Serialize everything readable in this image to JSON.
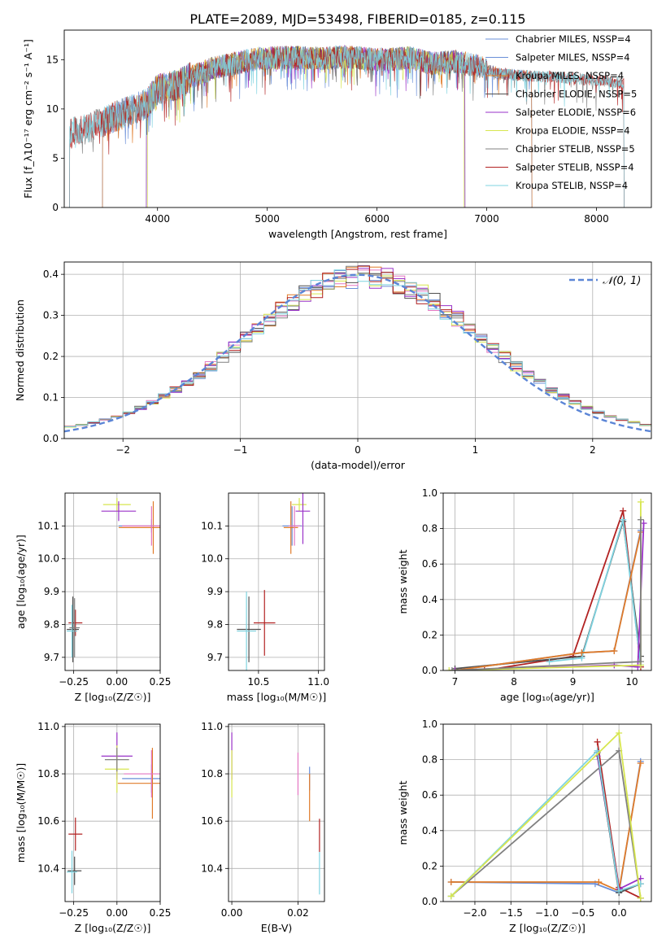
{
  "figure": {
    "title": "PLATE=2089, MJD=53498, FIBERID=0185, z=0.115"
  },
  "chart_data": [
    {
      "id": "spectrum",
      "type": "line",
      "xlabel": "wavelength [Angstrom, rest frame]",
      "ylabel": "Flux [f_λ10⁻¹⁷ erg cm⁻² s⁻¹ A⁻¹]",
      "xlim": [
        3150,
        8500
      ],
      "ylim": [
        0,
        18
      ],
      "xticks": [
        4000,
        5000,
        6000,
        7000,
        8000
      ],
      "yticks": [
        0,
        5,
        10,
        15
      ],
      "grid": false,
      "legend": "top-right",
      "series": [
        {
          "name": "Chabrier MILES, N_SSP=4",
          "color": "#6a8fd8",
          "range": [
            3500,
            7410
          ]
        },
        {
          "name": "Salpeter MILES, N_SSP=4",
          "color": "#6a8fd8",
          "range": [
            3500,
            7410
          ]
        },
        {
          "name": "Kroupa MILES, N_SSP=4",
          "color": "#e07b29",
          "range": [
            3500,
            7410
          ]
        },
        {
          "name": "Chabrier ELODIE, N_SSP=5",
          "color": "#4f4f4f",
          "range": [
            3900,
            6800
          ]
        },
        {
          "name": "Salpeter ELODIE, N_SSP=6",
          "color": "#9a32c8",
          "range": [
            3900,
            6800
          ]
        },
        {
          "name": "Kroupa ELODIE, N_SSP=4",
          "color": "#d7e64f",
          "range": [
            3910,
            6790
          ]
        },
        {
          "name": "Chabrier STELIB, N_SSP=5",
          "color": "#808080",
          "range": [
            3200,
            8250
          ]
        },
        {
          "name": "Salpeter STELIB, N_SSP=4",
          "color": "#b22222",
          "range": [
            3200,
            8250
          ]
        },
        {
          "name": "Kroupa STELIB, N_SSP=4",
          "color": "#7fd3e0",
          "range": [
            3200,
            8250
          ]
        }
      ],
      "continuum": {
        "x": [
          3200,
          3400,
          3700,
          3900,
          4000,
          4200,
          4300,
          4500,
          4700,
          4900,
          5100,
          5300,
          5500,
          5700,
          5900,
          6100,
          6300,
          6500,
          6700,
          6900,
          7100,
          7300,
          7500,
          7700,
          7900,
          8100,
          8250
        ],
        "y": [
          7.5,
          8.2,
          9.6,
          10.5,
          12.0,
          12.5,
          13.2,
          14.1,
          14.6,
          15.1,
          15.2,
          15.2,
          15.1,
          15.3,
          15.1,
          15.0,
          15.2,
          14.6,
          14.8,
          14.4,
          13.6,
          13.4,
          13.3,
          13.2,
          13.0,
          12.8,
          12.6
        ]
      }
    },
    {
      "id": "residuals",
      "type": "histogram",
      "xlabel": "(data-model)/error",
      "ylabel": "Normed distribution",
      "xlim": [
        -2.5,
        2.5
      ],
      "ylim": [
        0,
        0.43
      ],
      "xticks": [
        -2,
        -1,
        0,
        1,
        2
      ],
      "xtick_labels": [
        "−2",
        "−1",
        "0",
        "1",
        "2"
      ],
      "yticks": [
        0.0,
        0.1,
        0.2,
        0.3,
        0.4
      ],
      "ytick_labels": [
        "0.0",
        "0.1",
        "0.2",
        "0.3",
        "0.4"
      ],
      "grid": true,
      "legend": "top-right",
      "reference_curve": {
        "name": "𝒩(0, 1)",
        "color": "#5b85d6",
        "style": "dashed"
      },
      "bin_width": 0.1,
      "series_colors": [
        "#6a8fd8",
        "#e377c2",
        "#e07b29",
        "#4f4f4f",
        "#9a32c8",
        "#d7e64f",
        "#808080",
        "#b22222",
        "#7fd3e0"
      ]
    },
    {
      "id": "age-vs-Z",
      "type": "scatter",
      "xlabel": "Z [log₁₀(Z/Z☉)]",
      "ylabel": "age  [log₁₀(age/yr)]",
      "xlim": [
        -0.3,
        0.25
      ],
      "ylim": [
        9.66,
        10.2
      ],
      "xticks": [
        -0.25,
        0.0,
        0.25
      ],
      "xtick_labels": [
        "−0.25",
        "0.00",
        "0.25"
      ],
      "yticks": [
        9.7,
        9.8,
        9.9,
        10.0,
        10.1
      ],
      "ytick_labels": [
        "9.7",
        "9.8",
        "9.9",
        "10.0",
        "10.1"
      ],
      "grid": true,
      "points": [
        {
          "color": "#b22222",
          "x": -0.24,
          "y": 9.805,
          "xerr": 0.04,
          "yerr": 0.04
        },
        {
          "color": "#4f4f4f",
          "x": -0.255,
          "y": 9.785,
          "xerr": 0.035,
          "yerr": 0.1
        },
        {
          "color": "#7fd3e0",
          "x": -0.26,
          "y": 9.78,
          "xerr": 0.03,
          "yerr": 0.08
        },
        {
          "color": "#808080",
          "x": -0.245,
          "y": 9.79,
          "xerr": 0.03,
          "yerr": 0.09
        },
        {
          "color": "#d7e64f",
          "x": 0.0,
          "y": 10.165,
          "xerr": 0.08,
          "yerr": 0.02
        },
        {
          "color": "#9a32c8",
          "x": 0.01,
          "y": 10.145,
          "xerr": 0.1,
          "yerr": 0.03
        },
        {
          "color": "#6a8fd8",
          "x": 0.2,
          "y": 10.1,
          "xerr": 0.19,
          "yerr": 0.02
        },
        {
          "color": "#e07b29",
          "x": 0.21,
          "y": 10.095,
          "xerr": 0.2,
          "yerr": 0.08
        },
        {
          "color": "#e377c2",
          "x": 0.2,
          "y": 10.1,
          "xerr": 0.17,
          "yerr": 0.06
        }
      ]
    },
    {
      "id": "age-vs-mass",
      "type": "scatter",
      "xlabel": "mass [log₁₀(M/M☉)]",
      "ylabel": "",
      "xlim": [
        10.25,
        11.05
      ],
      "ylim": [
        9.66,
        10.2
      ],
      "xticks": [
        10.5,
        11.0
      ],
      "xtick_labels": [
        "10.5",
        "11.0"
      ],
      "yticks": [
        9.7,
        9.8,
        9.9,
        10.0,
        10.1
      ],
      "ytick_labels": [
        "9.7",
        "9.8",
        "9.9",
        "10.0",
        "10.1"
      ],
      "grid": true,
      "points": [
        {
          "color": "#b22222",
          "x": 10.55,
          "y": 9.805,
          "xerr": 0.09,
          "yerr": 0.1
        },
        {
          "color": "#4f4f4f",
          "x": 10.42,
          "y": 9.785,
          "xerr": 0.1,
          "yerr": 0.1
        },
        {
          "color": "#7fd3e0",
          "x": 10.4,
          "y": 9.78,
          "xerr": 0.08,
          "yerr": 0.12
        },
        {
          "color": "#d7e64f",
          "x": 10.84,
          "y": 10.165,
          "xerr": 0.06,
          "yerr": 0.02
        },
        {
          "color": "#9a32c8",
          "x": 10.87,
          "y": 10.145,
          "xerr": 0.06,
          "yerr": 0.1
        },
        {
          "color": "#6a8fd8",
          "x": 10.78,
          "y": 10.1,
          "xerr": 0.08,
          "yerr": 0.06
        },
        {
          "color": "#e07b29",
          "x": 10.77,
          "y": 10.095,
          "xerr": 0.06,
          "yerr": 0.08
        },
        {
          "color": "#e377c2",
          "x": 10.8,
          "y": 10.1,
          "xerr": 0.05,
          "yerr": 0.06
        }
      ]
    },
    {
      "id": "weight-vs-age",
      "type": "line",
      "xlabel": "age  [log₁₀(age/yr)]",
      "ylabel": "mass weight",
      "xlim": [
        6.8,
        10.33
      ],
      "ylim": [
        0,
        1.0
      ],
      "xticks": [
        7,
        8,
        9,
        10
      ],
      "yticks": [
        0.0,
        0.2,
        0.4,
        0.6,
        0.8,
        1.0
      ],
      "ytick_labels": [
        "0.0",
        "0.2",
        "0.4",
        "0.6",
        "0.8",
        "1.0"
      ],
      "grid": true,
      "series": [
        {
          "color": "#b22222",
          "x": [
            7.5,
            9.0,
            9.85,
            10.15
          ],
          "y": [
            0.0,
            0.08,
            0.9,
            0.02
          ]
        },
        {
          "color": "#4f4f4f",
          "x": [
            7.0,
            9.15,
            9.85,
            10.15
          ],
          "y": [
            0.01,
            0.08,
            0.84,
            0.08
          ]
        },
        {
          "color": "#7fd3e0",
          "x": [
            8.6,
            9.15,
            9.85,
            10.15
          ],
          "y": [
            0.05,
            0.07,
            0.85,
            0.03
          ]
        },
        {
          "color": "#6a8fd8",
          "x": [
            7.0,
            9.15,
            9.7,
            10.15
          ],
          "y": [
            0.0,
            0.1,
            0.11,
            0.79
          ]
        },
        {
          "color": "#e07b29",
          "x": [
            7.0,
            9.15,
            9.7,
            10.15
          ],
          "y": [
            0.0,
            0.1,
            0.11,
            0.78
          ]
        },
        {
          "color": "#9a32c8",
          "x": [
            7.0,
            9.7,
            10.1,
            10.2
          ],
          "y": [
            0.0,
            0.03,
            0.02,
            0.83
          ]
        },
        {
          "color": "#d7e64f",
          "x": [
            6.9,
            10.15,
            10.15
          ],
          "y": [
            0.0,
            0.03,
            0.95
          ]
        },
        {
          "color": "#808080",
          "x": [
            6.95,
            10.15,
            10.15
          ],
          "y": [
            0.0,
            0.05,
            0.85
          ]
        }
      ]
    },
    {
      "id": "mass-vs-Z",
      "type": "scatter",
      "xlabel": "Z [log₁₀(Z/Z☉)]",
      "ylabel": "mass [log₁₀(M/M☉)]",
      "xlim": [
        -0.3,
        0.25
      ],
      "ylim": [
        10.26,
        11.01
      ],
      "xticks": [
        -0.25,
        0.0,
        0.25
      ],
      "xtick_labels": [
        "−0.25",
        "0.00",
        "0.25"
      ],
      "yticks": [
        10.4,
        10.6,
        10.8,
        11.0
      ],
      "ytick_labels": [
        "10.4",
        "10.6",
        "10.8",
        "11.0"
      ],
      "grid": true,
      "points": [
        {
          "color": "#b22222",
          "x": -0.24,
          "y": 10.545,
          "xerr": 0.04,
          "yerr": 0.07
        },
        {
          "color": "#4f4f4f",
          "x": -0.245,
          "y": 10.39,
          "xerr": 0.04,
          "yerr": 0.06
        },
        {
          "color": "#7fd3e0",
          "x": -0.26,
          "y": 10.385,
          "xerr": 0.03,
          "yerr": 0.09
        },
        {
          "color": "#9a32c8",
          "x": 0.0,
          "y": 10.875,
          "xerr": 0.09,
          "yerr": 0.1
        },
        {
          "color": "#d7e64f",
          "x": 0.0,
          "y": 10.82,
          "xerr": 0.07,
          "yerr": 0.1
        },
        {
          "color": "#808080",
          "x": 0.0,
          "y": 10.86,
          "xerr": 0.07,
          "yerr": 0.05
        },
        {
          "color": "#6a8fd8",
          "x": 0.2,
          "y": 10.78,
          "xerr": 0.17,
          "yerr": 0.06
        },
        {
          "color": "#e07b29",
          "x": 0.205,
          "y": 10.76,
          "xerr": 0.2,
          "yerr": 0.15
        },
        {
          "color": "#e377c2",
          "x": 0.2,
          "y": 10.8,
          "xerr": 0.16,
          "yerr": 0.1
        }
      ]
    },
    {
      "id": "mass-vs-ebv",
      "type": "scatter",
      "xlabel": "E(B-V)",
      "ylabel": "",
      "xlim": [
        -0.001,
        0.028
      ],
      "ylim": [
        10.26,
        11.01
      ],
      "xticks": [
        0.0,
        0.02
      ],
      "xtick_labels": [
        "0.00",
        "0.02"
      ],
      "yticks": [
        10.4,
        10.6,
        10.8,
        11.0
      ],
      "ytick_labels": [
        "10.4",
        "10.6",
        "10.8",
        "11.0"
      ],
      "grid": true,
      "points": [
        {
          "color": "#9a32c8",
          "x": 0.0,
          "y": 10.875,
          "xerr": 0,
          "yerr": 0.1
        },
        {
          "color": "#d7e64f",
          "x": 0.0,
          "y": 10.8,
          "xerr": 0,
          "yerr": 0.1
        },
        {
          "color": "#e377c2",
          "x": 0.02,
          "y": 10.8,
          "xerr": 0,
          "yerr": 0.09
        },
        {
          "color": "#6a8fd8",
          "x": 0.0235,
          "y": 10.78,
          "xerr": 0,
          "yerr": 0.05
        },
        {
          "color": "#e07b29",
          "x": 0.0235,
          "y": 10.7,
          "xerr": 0,
          "yerr": 0.1
        },
        {
          "color": "#b22222",
          "x": 0.0265,
          "y": 10.54,
          "xerr": 0,
          "yerr": 0.07
        },
        {
          "color": "#7fd3e0",
          "x": 0.0265,
          "y": 10.38,
          "xerr": 0,
          "yerr": 0.09
        }
      ]
    },
    {
      "id": "weight-vs-Z",
      "type": "line",
      "xlabel": "Z [log₁₀(Z/Z☉)]",
      "ylabel": "mass weight",
      "xlim": [
        -2.44,
        0.45
      ],
      "ylim": [
        0,
        1.0
      ],
      "xticks": [
        -2.0,
        -1.5,
        -1.0,
        -0.5,
        0.0
      ],
      "xtick_labels": [
        "−2.0",
        "−1.5",
        "−1.0",
        "−0.5",
        "0.0"
      ],
      "yticks": [
        0.0,
        0.2,
        0.4,
        0.6,
        0.8,
        1.0
      ],
      "ytick_labels": [
        "0.0",
        "0.2",
        "0.4",
        "0.6",
        "0.8",
        "1.0"
      ],
      "grid": true,
      "series": [
        {
          "color": "#6a8fd8",
          "x": [
            -2.33,
            -0.33,
            0.0,
            0.3
          ],
          "y": [
            0.11,
            0.1,
            0.05,
            0.79
          ]
        },
        {
          "color": "#e07b29",
          "x": [
            -2.33,
            -0.28,
            0.0,
            0.3
          ],
          "y": [
            0.11,
            0.11,
            0.06,
            0.78
          ]
        },
        {
          "color": "#b22222",
          "x": [
            -0.3,
            0.0,
            0.3
          ],
          "y": [
            0.9,
            0.08,
            0.02
          ]
        },
        {
          "color": "#9a32c8",
          "x": [
            -0.3,
            0.0,
            0.3
          ],
          "y": [
            0.82,
            0.07,
            0.13
          ]
        },
        {
          "color": "#4f4f4f",
          "x": [
            -0.3,
            0.0,
            0.3
          ],
          "y": [
            0.84,
            0.05,
            0.1
          ]
        },
        {
          "color": "#808080",
          "x": [
            -2.33,
            0.0,
            0.3
          ],
          "y": [
            0.03,
            0.85,
            0.02
          ]
        },
        {
          "color": "#7fd3e0",
          "x": [
            -2.33,
            -0.3,
            0.0,
            0.3
          ],
          "y": [
            0.03,
            0.85,
            0.06,
            0.1
          ]
        },
        {
          "color": "#d7e64f",
          "x": [
            -2.33,
            0.0,
            0.3
          ],
          "y": [
            0.03,
            0.95,
            0.02
          ]
        }
      ]
    }
  ]
}
